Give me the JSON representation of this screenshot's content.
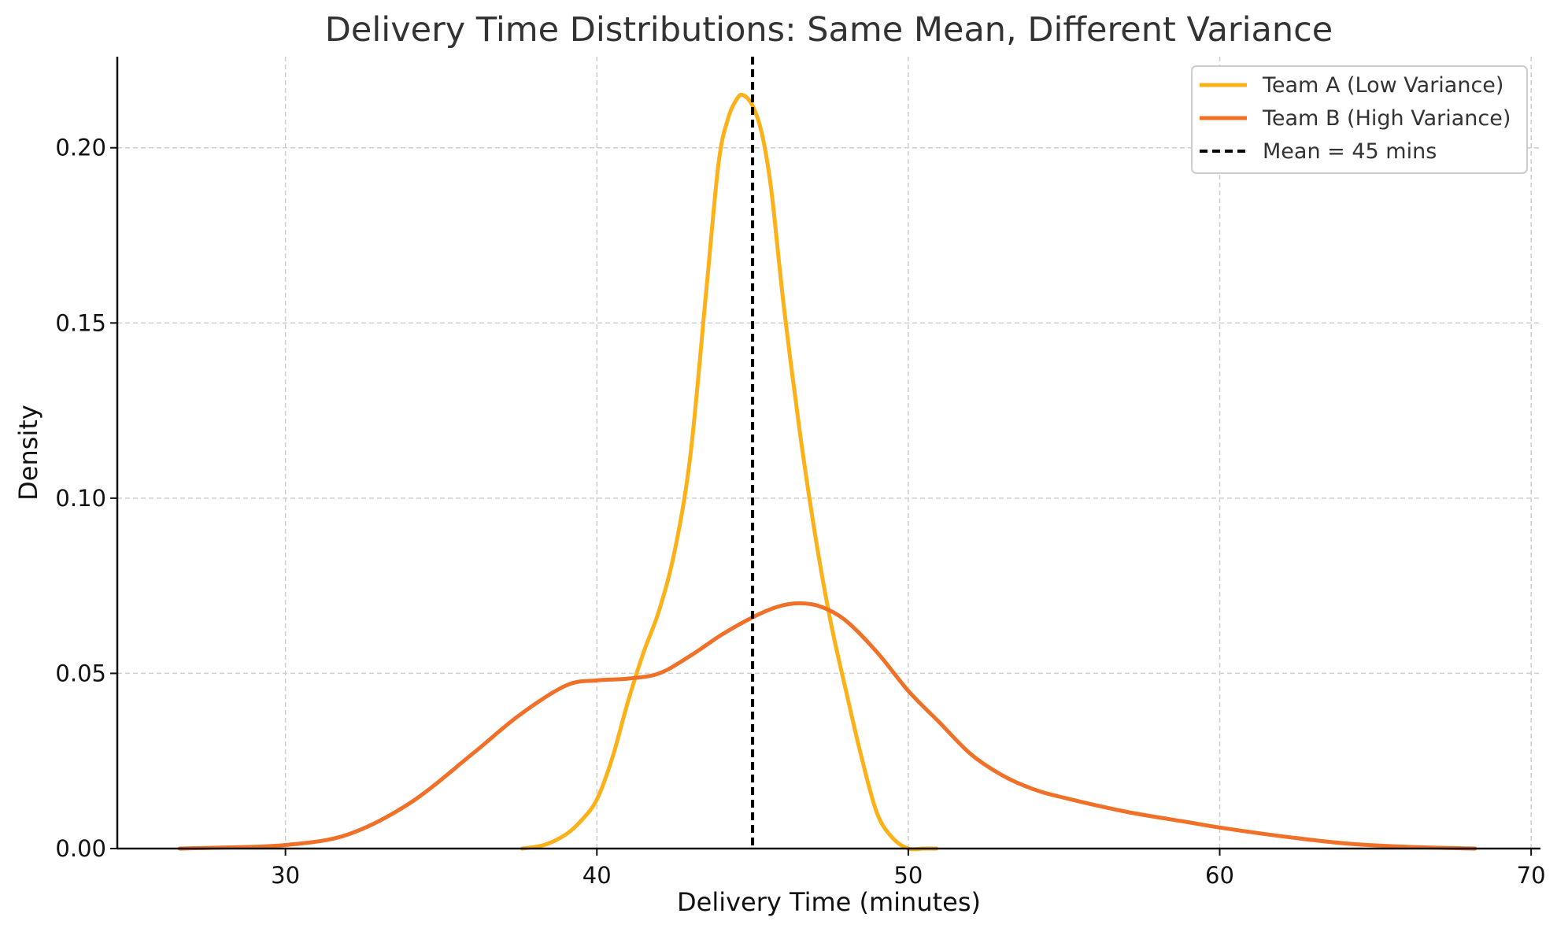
{
  "chart_data": {
    "type": "line",
    "title": "Delivery Time Distributions: Same Mean, Different Variance",
    "xlabel": "Delivery Time (minutes)",
    "ylabel": "Density",
    "xlim": [
      24.6,
      70.3
    ],
    "ylim": [
      0,
      0.226
    ],
    "xticks": [
      30,
      40,
      50,
      60,
      70
    ],
    "yticks": [
      0.0,
      0.05,
      0.1,
      0.15,
      0.2
    ],
    "xtick_labels": [
      "30",
      "40",
      "50",
      "60",
      "70"
    ],
    "ytick_labels": [
      "0.00",
      "0.05",
      "0.10",
      "0.15",
      "0.20"
    ],
    "grid": true,
    "legend_position": "top-right",
    "series": [
      {
        "name": "Team A (Low Variance)",
        "color": "#FBB117",
        "style": "solid",
        "x": [
          37.6,
          38.3,
          39.0,
          39.5,
          40.0,
          40.5,
          41.0,
          41.5,
          42.0,
          42.5,
          43.0,
          43.5,
          43.9,
          44.2,
          44.5,
          44.7,
          45.0,
          45.3,
          45.6,
          46.0,
          46.5,
          47.0,
          47.5,
          48.0,
          48.5,
          49.0,
          49.5,
          50.0,
          50.5,
          50.9
        ],
        "y": [
          0.0,
          0.001,
          0.004,
          0.008,
          0.014,
          0.026,
          0.042,
          0.056,
          0.068,
          0.085,
          0.112,
          0.158,
          0.195,
          0.208,
          0.214,
          0.215,
          0.212,
          0.204,
          0.188,
          0.155,
          0.12,
          0.09,
          0.065,
          0.045,
          0.026,
          0.01,
          0.003,
          0.0,
          0.0,
          0.0
        ]
      },
      {
        "name": "Team B (High Variance)",
        "color": "#F07028",
        "style": "solid",
        "x": [
          26.6,
          28.0,
          30.0,
          32.0,
          34.0,
          36.0,
          37.5,
          39.0,
          40.0,
          41.0,
          42.0,
          43.0,
          44.0,
          45.0,
          45.8,
          46.5,
          47.2,
          48.0,
          49.0,
          50.0,
          51.0,
          52.0,
          53.0,
          54.0,
          55.0,
          57.0,
          59.0,
          60.0,
          62.0,
          64.0,
          66.0,
          68.2
        ],
        "y": [
          0.0,
          0.0003,
          0.001,
          0.004,
          0.013,
          0.027,
          0.038,
          0.0465,
          0.048,
          0.0485,
          0.05,
          0.055,
          0.061,
          0.066,
          0.069,
          0.07,
          0.069,
          0.065,
          0.056,
          0.045,
          0.036,
          0.027,
          0.021,
          0.017,
          0.0145,
          0.0105,
          0.0075,
          0.006,
          0.0035,
          0.0015,
          0.0005,
          0.0
        ]
      },
      {
        "name": "Mean = 45 mins",
        "color": "#000000",
        "style": "dashed",
        "vline_x": 45
      }
    ]
  }
}
